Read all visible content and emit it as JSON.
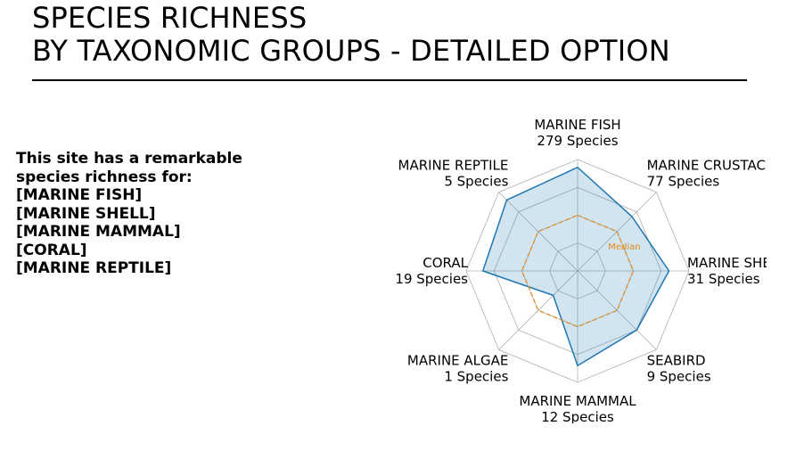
{
  "header": {
    "title_line1": "SPECIES RICHNESS",
    "title_line2": "BY TAXONOMIC GROUPS - DETAILED OPTION"
  },
  "summary": {
    "intro_line1": "This site has a remarkable",
    "intro_line2": "species richness for:",
    "groups": [
      "[MARINE FISH]",
      "[MARINE SHELL]",
      "[MARINE MAMMAL]",
      "[CORAL]",
      "[MARINE REPTILE]"
    ]
  },
  "chart_data": {
    "type": "radar",
    "categories": [
      "MARINE FISH",
      "MARINE CRUSTACEAN",
      "MARINE SHELL",
      "SEABIRD",
      "MARINE MAMMAL",
      "MARINE ALGAE",
      "CORAL",
      "MARINE REPTILE"
    ],
    "category_counts": [
      "279 Species",
      "77 Species",
      "31 Species",
      "9 Species",
      "12 Species",
      "1 Species",
      "19 Species",
      "5 Species"
    ],
    "series": [
      {
        "values": [
          0.93,
          0.69,
          0.82,
          0.75,
          0.85,
          0.31,
          0.85,
          0.9
        ],
        "color": "#1f77b4",
        "fill": "#1f77b4"
      },
      {
        "name": "Median",
        "values": [
          0.5,
          0.5,
          0.5,
          0.5,
          0.5,
          0.5,
          0.5,
          0.5
        ],
        "color": "#e38a1b"
      }
    ],
    "rlim": [
      0,
      1
    ],
    "grid": true,
    "grid_levels": 4,
    "grid_color": "#b0b0b0",
    "median_label": "Median"
  }
}
